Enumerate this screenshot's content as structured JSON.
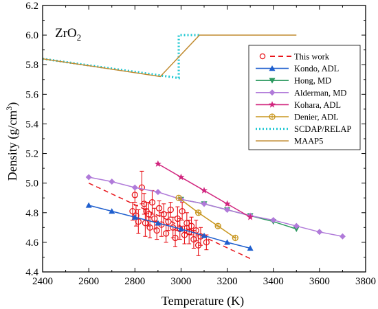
{
  "chart_data": {
    "type": "scatter",
    "annotation": {
      "main": "ZrO",
      "sub": "2"
    },
    "xlabel": "Temperature (K)",
    "ylabel": {
      "main": "Density (g/cm",
      "sup": "3",
      "close": ")"
    },
    "xlim": [
      2400,
      3800
    ],
    "ylim": [
      4.4,
      6.2
    ],
    "xticks": [
      2400,
      2600,
      2800,
      3000,
      3200,
      3400,
      3600,
      3800
    ],
    "yticks": [
      4.4,
      4.6,
      4.8,
      5.0,
      5.2,
      5.4,
      5.6,
      5.8,
      6.0,
      6.2
    ],
    "xtick_labels": [
      "2400",
      "2600",
      "2800",
      "3000",
      "3200",
      "3400",
      "3600",
      "3800"
    ],
    "ytick_labels": [
      "4.4",
      "4.6",
      "4.8",
      "5.0",
      "5.2",
      "5.4",
      "5.6",
      "5.8",
      "6.0",
      "6.2"
    ],
    "legend_position": "top-right",
    "series": [
      {
        "name": "This work",
        "kind": "scatter-errorbar",
        "color": "#e8141a",
        "marker": "circle-open",
        "points": [
          [
            2790,
            4.81,
            0.06
          ],
          [
            2800,
            4.92,
            0.05
          ],
          [
            2805,
            4.78,
            0.07
          ],
          [
            2815,
            4.74,
            0.08
          ],
          [
            2830,
            4.97,
            0.11
          ],
          [
            2840,
            4.86,
            0.07
          ],
          [
            2845,
            4.73,
            0.09
          ],
          [
            2850,
            4.81,
            0.06
          ],
          [
            2860,
            4.79,
            0.08
          ],
          [
            2865,
            4.7,
            0.07
          ],
          [
            2875,
            4.87,
            0.08
          ],
          [
            2885,
            4.76,
            0.07
          ],
          [
            2895,
            4.68,
            0.06
          ],
          [
            2905,
            4.83,
            0.05
          ],
          [
            2915,
            4.72,
            0.08
          ],
          [
            2925,
            4.79,
            0.07
          ],
          [
            2935,
            4.66,
            0.06
          ],
          [
            2945,
            4.74,
            0.06
          ],
          [
            2955,
            4.82,
            0.05
          ],
          [
            2965,
            4.7,
            0.07
          ],
          [
            2975,
            4.63,
            0.06
          ],
          [
            2985,
            4.76,
            0.08
          ],
          [
            2995,
            4.69,
            0.07
          ],
          [
            3005,
            4.81,
            0.06
          ],
          [
            3015,
            4.65,
            0.06
          ],
          [
            3025,
            4.73,
            0.07
          ],
          [
            3035,
            4.67,
            0.08
          ],
          [
            3045,
            4.71,
            0.06
          ],
          [
            3055,
            4.62,
            0.06
          ],
          [
            3065,
            4.68,
            0.07
          ],
          [
            3075,
            4.58,
            0.07
          ],
          [
            3085,
            4.64,
            0.06
          ],
          [
            3110,
            4.6,
            0.05
          ]
        ]
      },
      {
        "name": "This work",
        "kind": "line",
        "color": "#e8141a",
        "dash": "7,5",
        "marker": "none",
        "points": [
          [
            2600,
            5.0
          ],
          [
            3300,
            4.49
          ]
        ]
      },
      {
        "name": "Kondo, ADL",
        "kind": "line",
        "color": "#1f5fce",
        "marker": "triangle-up",
        "points": [
          [
            2600,
            4.85
          ],
          [
            2700,
            4.81
          ],
          [
            2800,
            4.77
          ],
          [
            2900,
            4.73
          ],
          [
            3000,
            4.69
          ],
          [
            3100,
            4.645
          ],
          [
            3200,
            4.6
          ],
          [
            3300,
            4.56
          ]
        ]
      },
      {
        "name": "Hong, MD",
        "kind": "line",
        "color": "#2e9a61",
        "marker": "triangle-down",
        "points": [
          [
            3000,
            4.89
          ],
          [
            3100,
            4.86
          ],
          [
            3200,
            4.82
          ],
          [
            3300,
            4.78
          ],
          [
            3400,
            4.74
          ],
          [
            3500,
            4.69
          ]
        ]
      },
      {
        "name": "Alderman, MD",
        "kind": "line",
        "color": "#b07ad9",
        "marker": "diamond",
        "points": [
          [
            2600,
            5.04
          ],
          [
            2700,
            5.01
          ],
          [
            2800,
            4.97
          ],
          [
            2900,
            4.94
          ],
          [
            3000,
            4.89
          ],
          [
            3100,
            4.86
          ],
          [
            3200,
            4.82
          ],
          [
            3300,
            4.78
          ],
          [
            3400,
            4.75
          ],
          [
            3500,
            4.71
          ],
          [
            3600,
            4.67
          ],
          [
            3700,
            4.64
          ]
        ]
      },
      {
        "name": "Kohara, ADL",
        "kind": "line",
        "color": "#d1257e",
        "marker": "star",
        "points": [
          [
            2900,
            5.13
          ],
          [
            3000,
            5.04
          ],
          [
            3100,
            4.95
          ],
          [
            3200,
            4.86
          ],
          [
            3300,
            4.77
          ]
        ]
      },
      {
        "name": "Denier, ADL",
        "kind": "line",
        "color": "#c8961e",
        "marker": "circle-cross",
        "points": [
          [
            2990,
            4.9
          ],
          [
            3075,
            4.8
          ],
          [
            3160,
            4.71
          ],
          [
            3235,
            4.63
          ]
        ]
      },
      {
        "name": "SCDAP/RELAP",
        "kind": "line",
        "color": "#1fc8d2",
        "dash": "2,3",
        "width": 3.2,
        "marker": "none",
        "points": [
          [
            2400,
            5.84
          ],
          [
            2990,
            5.71
          ],
          [
            2990,
            6.0
          ],
          [
            3080,
            6.0
          ]
        ]
      },
      {
        "name": "MAAP5",
        "kind": "line",
        "color": "#c08a2e",
        "marker": "none",
        "points": [
          [
            2400,
            5.84
          ],
          [
            2910,
            5.72
          ],
          [
            3080,
            6.0
          ],
          [
            3500,
            6.0
          ]
        ]
      }
    ],
    "legend_entries": [
      {
        "label": "This work",
        "color": "#e8141a",
        "marker": "circle-open",
        "dash": "7,5"
      },
      {
        "label": "Kondo, ADL",
        "color": "#1f5fce",
        "marker": "triangle-up",
        "dash": ""
      },
      {
        "label": "Hong, MD",
        "color": "#2e9a61",
        "marker": "triangle-down",
        "dash": ""
      },
      {
        "label": "Alderman, MD",
        "color": "#b07ad9",
        "marker": "diamond",
        "dash": ""
      },
      {
        "label": "Kohara, ADL",
        "color": "#d1257e",
        "marker": "star",
        "dash": ""
      },
      {
        "label": "Denier, ADL",
        "color": "#c8961e",
        "marker": "circle-cross",
        "dash": ""
      },
      {
        "label": "SCDAP/RELAP",
        "color": "#1fc8d2",
        "marker": "none",
        "dash": "2,3"
      },
      {
        "label": "MAAP5",
        "color": "#c08a2e",
        "marker": "none",
        "dash": ""
      }
    ]
  }
}
